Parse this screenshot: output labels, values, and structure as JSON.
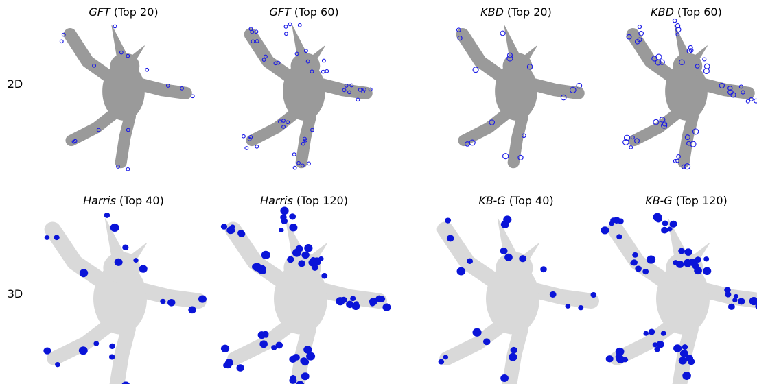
{
  "rows": [
    {
      "label": "2D",
      "panels": [
        {
          "method": "GFT",
          "suffix": "(Top 20)"
        },
        {
          "method": "GFT",
          "suffix": "(Top 60)"
        },
        {
          "method": "KBD",
          "suffix": "(Top 20)"
        },
        {
          "method": "KBD",
          "suffix": "(Top 60)"
        }
      ]
    },
    {
      "label": "3D",
      "panels": [
        {
          "method": "Harris",
          "suffix": "(Top 40)"
        },
        {
          "method": "Harris",
          "suffix": "(Top 120)"
        },
        {
          "method": "KB-G",
          "suffix": "(Top 40)"
        },
        {
          "method": "KB-G",
          "suffix": "(Top 120)"
        }
      ]
    }
  ]
}
